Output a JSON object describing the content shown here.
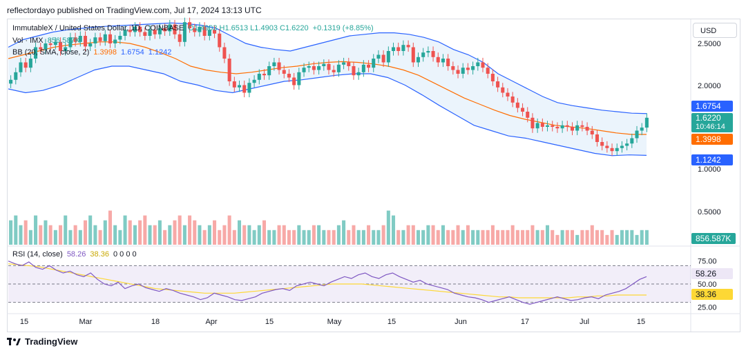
{
  "header": {
    "published": "reflectordayo published on TradingView.com, Jul 17, 2024 13:13 UTC"
  },
  "legend": {
    "symbol": "ImmutableX / United States Dollar, 1D, COINBASE",
    "ohlc": "O1.4903 H1.6513 L1.4903 C1.6220",
    "change": "+0.1319 (+8.85%)",
    "vol_label": "Vol · IMX",
    "vol_value": "856.587K",
    "bb_label": "BB (20, SMA, close, 2)",
    "bb_basis": "1.3998",
    "bb_upper": "1.6754",
    "bb_lower": "1.1242",
    "rsi_label": "RSI (14, close)",
    "rsi_value": "58.26",
    "rsi_ma": "38.36",
    "rsi_extra": "0 0 0 0"
  },
  "currency_button": "USD",
  "price_axis_ticks": [
    "2.5000",
    "2.0000",
    "1.0000",
    "0.5000"
  ],
  "rsi_axis_ticks": [
    "75.00",
    "50.00",
    "25.00"
  ],
  "time_axis_ticks": [
    "15",
    "Mar",
    "18",
    "Apr",
    "15",
    "May",
    "15",
    "Jun",
    "17",
    "Jul",
    "15"
  ],
  "tags": {
    "upper": "1.6754",
    "price": "1.6220",
    "countdown": "10:46:14",
    "basis": "1.3998",
    "lower": "1.1242",
    "volume": "856.587K",
    "rsi": "58.26",
    "rsi_ma": "38.36"
  },
  "footer": {
    "brand": "TradingView"
  },
  "colors": {
    "up": "#26a69a",
    "down": "#ef5350",
    "bb_band": "#2962ff",
    "bb_basis": "#ff6d00",
    "rsi": "#7e57c2",
    "rsi_ma": "#fdd835",
    "fill": "#e3f0fb"
  },
  "chart_data": {
    "type": "candlestick",
    "title": "ImmutableX / United States Dollar, 1D, COINBASE",
    "ylabel": "USD",
    "closes": [
      2.12,
      2.22,
      2.35,
      2.28,
      2.4,
      2.55,
      2.52,
      2.6,
      2.58,
      2.62,
      2.5,
      2.55,
      2.68,
      2.62,
      2.7,
      2.56,
      2.6,
      2.68,
      2.63,
      2.72,
      2.6,
      2.65,
      2.7,
      2.78,
      2.75,
      2.82,
      2.75,
      2.7,
      2.78,
      2.72,
      2.8,
      2.76,
      2.85,
      2.72,
      2.62,
      2.88,
      2.8,
      2.75,
      2.82,
      2.7,
      2.78,
      2.73,
      2.55,
      2.4,
      2.1,
      2.02,
      2.05,
      1.95,
      2.08,
      2.12,
      2.2,
      2.18,
      2.3,
      2.35,
      2.25,
      2.2,
      2.15,
      2.05,
      2.22,
      2.28,
      2.3,
      2.25,
      2.3,
      2.33,
      2.25,
      2.22,
      2.32,
      2.35,
      2.3,
      2.18,
      2.22,
      2.32,
      2.28,
      2.4,
      2.45,
      2.35,
      2.5,
      2.55,
      2.5,
      2.58,
      2.55,
      2.35,
      2.42,
      2.48,
      2.5,
      2.42,
      2.35,
      2.4,
      2.3,
      2.25,
      2.2,
      2.28,
      2.25,
      2.3,
      2.35,
      2.28,
      2.2,
      2.1,
      2.02,
      1.95,
      1.9,
      1.82,
      1.75,
      1.7,
      1.62,
      1.48,
      1.55,
      1.5,
      1.52,
      1.5,
      1.48,
      1.52,
      1.5,
      1.45,
      1.52,
      1.5,
      1.45,
      1.4,
      1.3,
      1.25,
      1.22,
      1.18,
      1.22,
      1.25,
      1.28,
      1.35,
      1.45,
      1.49,
      1.62
    ],
    "volumes": [
      5,
      6,
      4,
      5,
      3,
      6,
      4,
      5,
      4,
      3,
      4,
      6,
      3,
      4,
      3,
      5,
      6,
      4,
      3,
      5,
      7,
      4,
      3,
      6,
      5,
      4,
      5,
      6,
      4,
      4,
      5,
      3,
      4,
      5,
      6,
      4,
      6,
      5,
      4,
      3,
      4,
      5,
      3,
      4,
      6,
      3,
      5,
      4,
      4,
      3,
      4,
      5,
      3,
      3,
      4,
      4,
      3,
      3,
      4,
      3,
      3,
      4,
      4,
      3,
      3,
      3,
      4,
      5,
      3,
      4,
      3,
      3,
      4,
      3,
      3,
      4,
      7,
      6,
      3,
      3,
      4,
      4,
      3,
      3,
      4,
      4,
      3,
      4,
      3,
      3,
      4,
      3,
      4,
      3,
      3,
      3,
      3,
      4,
      3,
      3,
      3,
      4,
      3,
      3,
      3,
      4,
      3,
      3,
      4,
      3,
      2,
      3,
      3,
      3,
      2,
      3,
      3,
      4,
      3,
      3,
      2,
      3,
      2,
      3,
      3,
      3,
      2,
      3,
      3
    ],
    "rsi": [
      75,
      72,
      70,
      74,
      68,
      66,
      70,
      65,
      62,
      64,
      60,
      58,
      62,
      55,
      50,
      48,
      52,
      45,
      48,
      50,
      46,
      44,
      42,
      45,
      43,
      40,
      38,
      36,
      33,
      35,
      40,
      38,
      36,
      33,
      32,
      34,
      36,
      40,
      42,
      44,
      45,
      43,
      48,
      50,
      52,
      50,
      48,
      52,
      55,
      58,
      56,
      60,
      62,
      58,
      56,
      60,
      62,
      58,
      55,
      52,
      54,
      50,
      48,
      46,
      44,
      40,
      38,
      36,
      35,
      33,
      30,
      32,
      34,
      36,
      33,
      30,
      28,
      30,
      32,
      34,
      36,
      34,
      32,
      33,
      35,
      36,
      34,
      38,
      40,
      42,
      45,
      50,
      55,
      58
    ],
    "rsi_ma": [
      72,
      71,
      70,
      69,
      67,
      65,
      63,
      61,
      59,
      57,
      55,
      53,
      51,
      49,
      47,
      45,
      44,
      43,
      42,
      41,
      40,
      40,
      40,
      40,
      41,
      42,
      43,
      44,
      45,
      46,
      47,
      48,
      49,
      50,
      50,
      50,
      50,
      49,
      48,
      47,
      46,
      45,
      44,
      43,
      42,
      41,
      40,
      39,
      38,
      37,
      36,
      36,
      35,
      35,
      35,
      35,
      35,
      35,
      36,
      36,
      37,
      37,
      38,
      38,
      38,
      38
    ],
    "bb_upper": [
      2.55,
      2.65,
      2.7,
      2.75,
      2.78,
      2.8,
      2.82,
      2.83,
      2.84,
      2.85,
      2.86,
      2.87,
      2.86,
      2.84,
      2.8,
      2.7,
      2.6,
      2.55,
      2.52,
      2.5,
      2.55,
      2.6,
      2.65,
      2.7,
      2.72,
      2.74,
      2.74,
      2.72,
      2.68,
      2.62,
      2.52,
      2.45,
      2.35,
      2.2,
      2.1,
      2.0,
      1.9,
      1.82,
      1.78,
      1.75,
      1.72,
      1.7,
      1.68,
      1.675
    ],
    "bb_basis": [
      2.4,
      2.45,
      2.5,
      2.55,
      2.58,
      2.6,
      2.62,
      2.62,
      2.6,
      2.55,
      2.48,
      2.4,
      2.3,
      2.25,
      2.22,
      2.2,
      2.22,
      2.25,
      2.28,
      2.3,
      2.33,
      2.35,
      2.36,
      2.35,
      2.33,
      2.3,
      2.25,
      2.18,
      2.08,
      1.98,
      1.88,
      1.8,
      1.72,
      1.65,
      1.6,
      1.56,
      1.52,
      1.5,
      1.48,
      1.45,
      1.42,
      1.4,
      1.3998
    ],
    "bb_lower": [
      2.0,
      1.95,
      1.98,
      2.05,
      2.15,
      2.25,
      2.3,
      2.3,
      2.25,
      2.2,
      2.1,
      2.05,
      1.98,
      1.95,
      2.0,
      2.05,
      2.1,
      2.12,
      2.15,
      2.18,
      2.2,
      2.2,
      2.15,
      2.05,
      1.92,
      1.78,
      1.65,
      1.52,
      1.45,
      1.38,
      1.35,
      1.3,
      1.25,
      1.2,
      1.15,
      1.12,
      1.13,
      1.124
    ],
    "ylim": [
      0.9,
      2.9
    ],
    "rsi_ylim": [
      20,
      80
    ]
  }
}
